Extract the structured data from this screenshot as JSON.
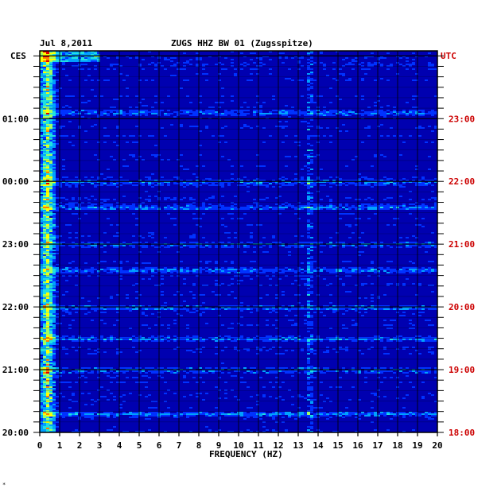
{
  "header": {
    "date": "Jul 8,2011",
    "station": "ZUGS HHZ BW 01 (Zugsspitze)",
    "left_zone": "CES",
    "right_zone": "UTC"
  },
  "chart_data": {
    "type": "heatmap",
    "title": "ZUGS HHZ BW 01 (Zugsspitze)",
    "xlabel": "FREQUENCY (HZ)",
    "ylabel": "",
    "xlim": [
      0,
      20
    ],
    "x_ticks": [
      "0",
      "1",
      "2",
      "3",
      "4",
      "5",
      "6",
      "7",
      "8",
      "9",
      "10",
      "11",
      "12",
      "13",
      "14",
      "15",
      "16",
      "17",
      "18",
      "19",
      "20"
    ],
    "y_ticks_left": [
      "01:00",
      "00:00",
      "23:00",
      "22:00",
      "21:00",
      "20:00"
    ],
    "y_ticks_right": [
      "23:00",
      "22:00",
      "21:00",
      "20:00",
      "19:00",
      "18:00"
    ],
    "y_tick_hours_from_bottom": [
      5,
      4,
      3,
      2,
      1,
      0
    ],
    "hours_span": 6.08,
    "colormap": [
      "#00007a",
      "#0000c8",
      "#0032ff",
      "#00a0ff",
      "#20e0e0",
      "#a0ff60",
      "#ffff00",
      "#ff8000",
      "#e00000"
    ],
    "background_color": "#0000b0",
    "notable_lines_hz": [
      0.3,
      13.5
    ],
    "strong_bands_hours_from_bottom": [
      0.3,
      1.0,
      1.5,
      2.0,
      2.6,
      3.0,
      3.6,
      4.0,
      5.1
    ]
  }
}
